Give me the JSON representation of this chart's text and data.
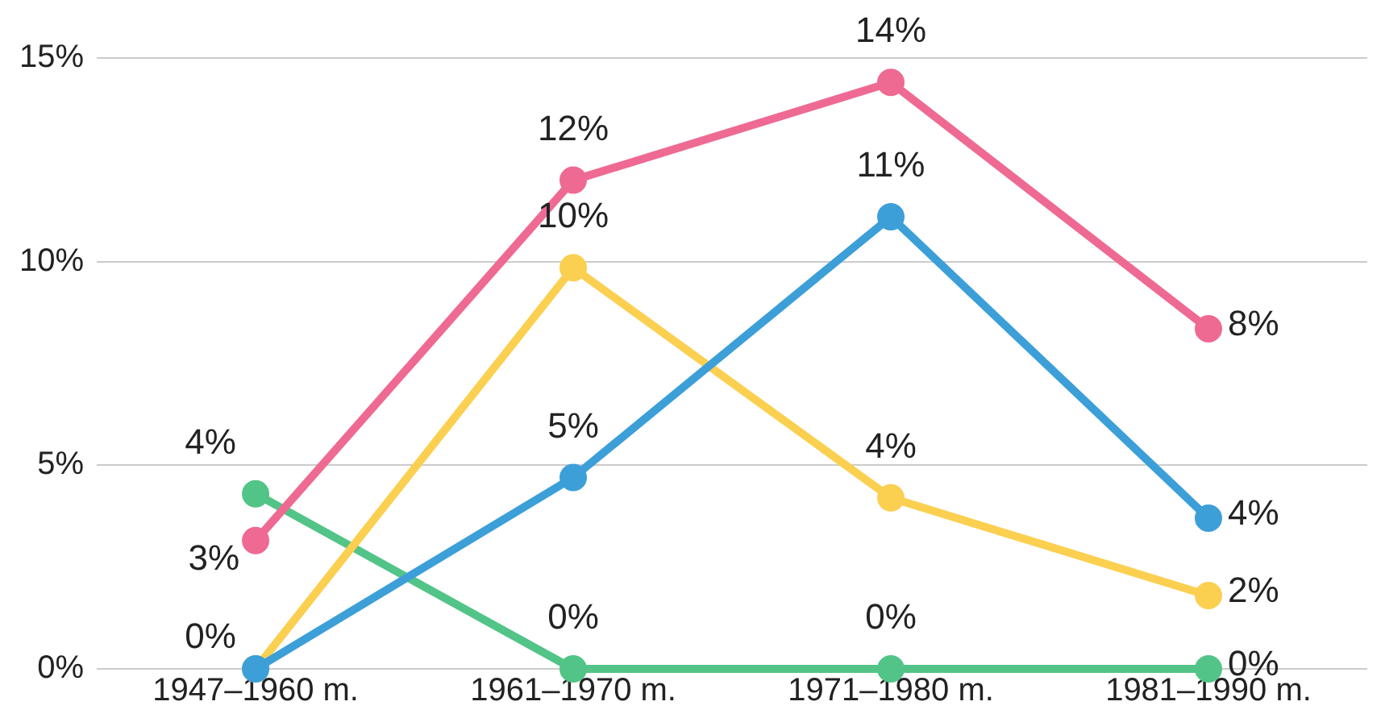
{
  "chart_data": {
    "type": "line",
    "categories": [
      "1947–1960 m.",
      "1961–1970 m.",
      "1971–1980 m.",
      "1981–1990 m."
    ],
    "series": [
      {
        "color": "#ee6a93",
        "values": [
          3.15,
          12.0,
          14.4,
          8.35
        ],
        "value_labels": [
          "3%",
          "12%",
          "14%",
          "8%"
        ]
      },
      {
        "color": "#3c9fd8",
        "values": [
          0,
          4.7,
          11.1,
          3.7
        ],
        "value_labels": [
          null,
          "5%",
          "11%",
          "4%"
        ]
      },
      {
        "color": "#fbcf50",
        "values": [
          0,
          9.85,
          4.2,
          1.8
        ],
        "value_labels": [
          "0%",
          "10%",
          "4%",
          "2%"
        ]
      },
      {
        "color": "#52c487",
        "values": [
          4.3,
          0,
          0,
          0
        ],
        "value_labels": [
          "4%",
          "0%",
          "0%",
          "0%"
        ]
      }
    ],
    "ylim": [
      0,
      15
    ],
    "yticks": [
      {
        "value": 0,
        "label": "0%"
      },
      {
        "value": 5,
        "label": "5%"
      },
      {
        "value": 10,
        "label": "10%"
      },
      {
        "value": 15,
        "label": "15%"
      }
    ],
    "grid": "y",
    "legend": false,
    "marker": "circle",
    "line_style": "solid"
  }
}
